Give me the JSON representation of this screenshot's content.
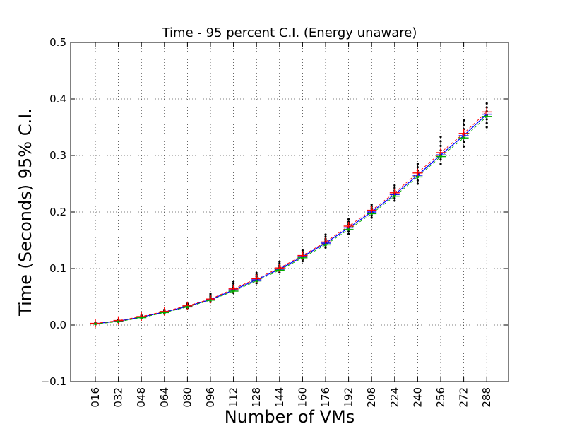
{
  "chart_data": {
    "type": "line",
    "title": "Time - 95 percent C.I. (Energy unaware)",
    "xlabel": "Number of VMs",
    "ylabel": "Time (Seconds) 95% C.I.",
    "ylim": [
      -0.1,
      0.5
    ],
    "yticks": [
      "−0.1",
      "0.0",
      "0.1",
      "0.2",
      "0.3",
      "0.4",
      "0.5"
    ],
    "grid": true,
    "categories": [
      "016",
      "032",
      "048",
      "064",
      "080",
      "096",
      "112",
      "128",
      "144",
      "160",
      "176",
      "192",
      "208",
      "224",
      "240",
      "256",
      "272",
      "288"
    ],
    "series": [
      {
        "color": "#0000ff",
        "values": [
          0.0025,
          0.007,
          0.014,
          0.023,
          0.033,
          0.045,
          0.062,
          0.08,
          0.099,
          0.121,
          0.145,
          0.172,
          0.2,
          0.231,
          0.265,
          0.301,
          0.335,
          0.373
        ]
      },
      {
        "color": "#00aa00",
        "values": [
          0.002,
          0.006,
          0.013,
          0.022,
          0.032,
          0.044,
          0.06,
          0.078,
          0.097,
          0.119,
          0.142,
          0.169,
          0.197,
          0.228,
          0.262,
          0.298,
          0.331,
          0.369
        ]
      },
      {
        "color": "#ff0000",
        "values": [
          0.003,
          0.008,
          0.015,
          0.024,
          0.034,
          0.046,
          0.064,
          0.082,
          0.101,
          0.123,
          0.147,
          0.175,
          0.203,
          0.234,
          0.269,
          0.305,
          0.339,
          0.377
        ]
      }
    ],
    "whiskers": {
      "low": [
        0.0015,
        0.0055,
        0.012,
        0.02,
        0.03,
        0.041,
        0.057,
        0.074,
        0.093,
        0.113,
        0.137,
        0.161,
        0.19,
        0.22,
        0.25,
        0.285,
        0.316,
        0.35
      ],
      "high": [
        0.0045,
        0.0095,
        0.017,
        0.027,
        0.038,
        0.055,
        0.077,
        0.092,
        0.112,
        0.132,
        0.16,
        0.187,
        0.213,
        0.247,
        0.285,
        0.333,
        0.362,
        0.392
      ]
    },
    "colors": {
      "ci_marker": "#ff0000",
      "lower_marker": "#00aa00",
      "mean_line": "#0000ff",
      "points": "#000000",
      "grid": "#000000"
    }
  }
}
